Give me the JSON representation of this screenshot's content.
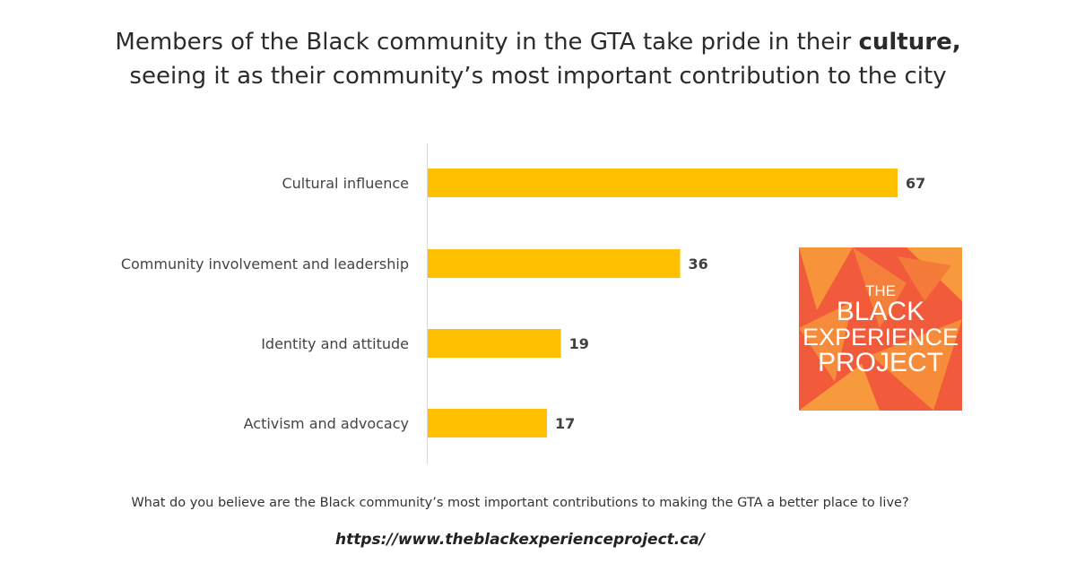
{
  "title_line1_pre": "Members of the Black community in the GTA take pride in their ",
  "title_line1_bold": "culture,",
  "title_line2": "seeing it as their community’s most important contribution to the city",
  "question": "What do you believe are the Black community’s most important contributions to making the GTA a better place to live?",
  "url": "https://www.theblackexperienceproject.ca/",
  "logo": {
    "line1": "THE",
    "line2": "BLACK",
    "line3": "EXPERIENCE",
    "line4": "PROJECT"
  },
  "colors": {
    "bar": "#FFC000",
    "logo_bg": "#F15A3A",
    "logo_accent": "#F7943A"
  },
  "chart_data": {
    "type": "bar",
    "orientation": "horizontal",
    "categories": [
      "Cultural influence",
      "Community involvement and leadership",
      "Identity and attitude",
      "Activism and advocacy"
    ],
    "values": [
      67,
      36,
      19,
      17
    ],
    "data_labels": [
      "67",
      "36",
      "19",
      "17"
    ],
    "xlim": [
      0,
      67
    ],
    "grid": false,
    "legend": "none"
  }
}
